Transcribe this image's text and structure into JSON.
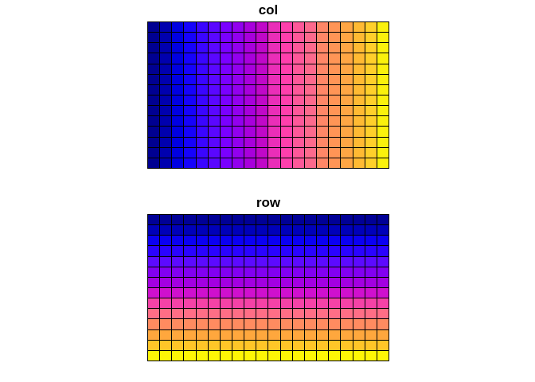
{
  "page": {
    "background": "#ffffff",
    "grid_line_color": "#000000",
    "text_color": "#000000"
  },
  "chart_data": [
    {
      "type": "heatmap",
      "title": "col",
      "n_rows": 14,
      "n_cols": 20,
      "color_by": "col",
      "value_rule": "cell value = column index (1..20); all cells in a column share one color",
      "legend": "none",
      "axes": "none",
      "grid_lines": true,
      "palette": [
        "#000091",
        "#0000AE",
        "#0000E1",
        "#1602FB",
        "#3A05FF",
        "#5A07FF",
        "#7A00FF",
        "#9200EE",
        "#A800DC",
        "#C008C8",
        "#EA2EB8",
        "#FF3FAC",
        "#FD5899",
        "#FC6A8D",
        "#FF8767",
        "#FF9556",
        "#FFA644",
        "#FFBA33",
        "#FFD02B",
        "#FAF10D"
      ]
    },
    {
      "type": "heatmap",
      "title": "row",
      "n_rows": 14,
      "n_cols": 20,
      "color_by": "row",
      "value_rule": "cell value = row index (1..14); all cells in a row share one color",
      "legend": "none",
      "axes": "none",
      "grid_lines": true,
      "palette": [
        "#000096",
        "#0000B9",
        "#0B00F2",
        "#2A03FF",
        "#5C0AFF",
        "#8200F2",
        "#A300E2",
        "#CF10CE",
        "#F542A7",
        "#FF6E86",
        "#FF8B60",
        "#FFA73D",
        "#FFC628",
        "#FEF606"
      ]
    }
  ]
}
